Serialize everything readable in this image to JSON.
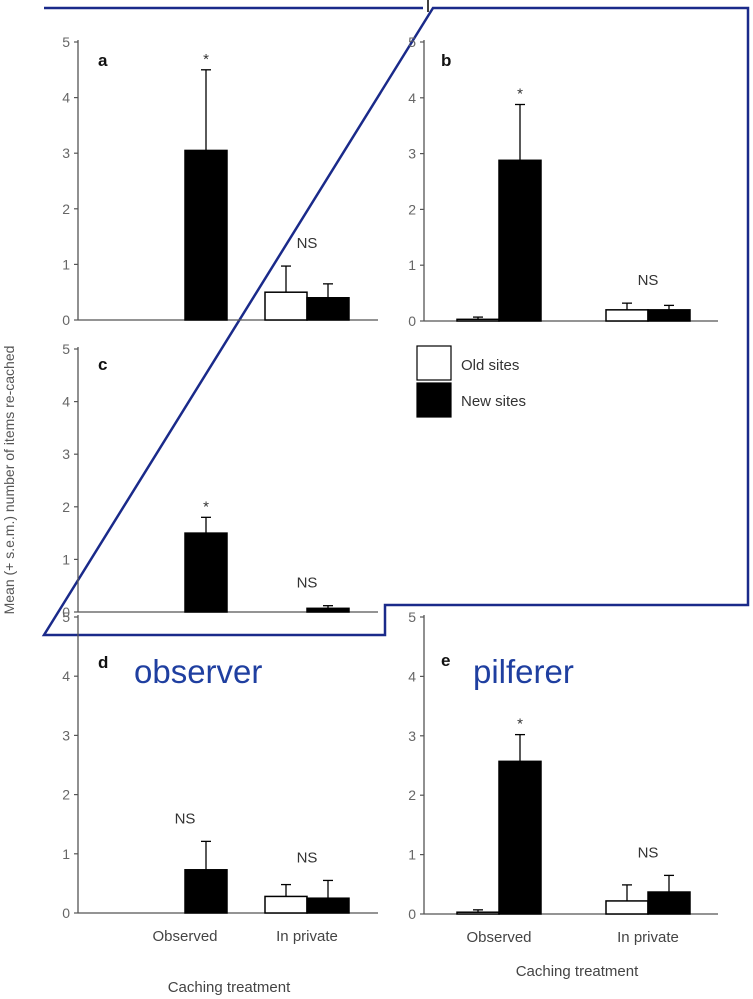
{
  "figure": {
    "ylabel": "Mean (+ s.e.m.) number of items re-cached",
    "xlabel": "Caching treatment",
    "legend": {
      "old_label": "Old sites",
      "new_label": "New sites",
      "old_color": "#ffffff",
      "new_color": "#000000"
    },
    "highlight_color": "#1a2a8a",
    "overlay_color": "#1f3fa0"
  },
  "annotations": {
    "observer": "observer",
    "pilferer": "pilferer"
  },
  "chart_data": [
    {
      "panel": "a",
      "type": "bar",
      "categories": [
        "Observed",
        "In private"
      ],
      "ylim": [
        0,
        5
      ],
      "yticks": [
        "0",
        "1",
        "2",
        "3",
        "4",
        "5"
      ],
      "show_xticklabels": false,
      "series": [
        {
          "name": "Old sites",
          "values": [
            0,
            0.5
          ],
          "errors": [
            0,
            0.47
          ]
        },
        {
          "name": "New sites",
          "values": [
            3.05,
            0.4
          ],
          "errors": [
            1.45,
            0.25
          ]
        }
      ],
      "significance": [
        "*",
        "NS"
      ]
    },
    {
      "panel": "b",
      "type": "bar",
      "categories": [
        "Observed",
        "In private"
      ],
      "ylim": [
        0,
        5
      ],
      "yticks": [
        "0",
        "1",
        "2",
        "3",
        "4",
        "5"
      ],
      "show_xticklabels": false,
      "series": [
        {
          "name": "Old sites",
          "values": [
            0.03,
            0.2
          ],
          "errors": [
            0.04,
            0.12
          ]
        },
        {
          "name": "New sites",
          "values": [
            2.88,
            0.2
          ],
          "errors": [
            1.0,
            0.08
          ]
        }
      ],
      "significance": [
        "*",
        "NS"
      ]
    },
    {
      "panel": "c",
      "type": "bar",
      "categories": [
        "Observed",
        "In private"
      ],
      "ylim": [
        0,
        5
      ],
      "yticks": [
        "0",
        "1",
        "2",
        "3",
        "4",
        "5"
      ],
      "show_xticklabels": false,
      "series": [
        {
          "name": "Old sites",
          "values": [
            0,
            0
          ],
          "errors": [
            0,
            0
          ]
        },
        {
          "name": "New sites",
          "values": [
            1.5,
            0.07
          ],
          "errors": [
            0.3,
            0.05
          ]
        }
      ],
      "significance": [
        "*",
        "NS"
      ]
    },
    {
      "panel": "d",
      "type": "bar",
      "categories": [
        "Observed",
        "In private"
      ],
      "ylim": [
        0,
        5
      ],
      "yticks": [
        "0",
        "1",
        "2",
        "3",
        "4",
        "5"
      ],
      "show_xticklabels": true,
      "series": [
        {
          "name": "Old sites",
          "values": [
            0,
            0.28
          ],
          "errors": [
            0,
            0.2
          ]
        },
        {
          "name": "New sites",
          "values": [
            0.73,
            0.25
          ],
          "errors": [
            0.48,
            0.3
          ]
        }
      ],
      "significance": [
        "NS",
        "NS"
      ]
    },
    {
      "panel": "e",
      "type": "bar",
      "categories": [
        "Observed",
        "In private"
      ],
      "ylim": [
        0,
        5
      ],
      "yticks": [
        "0",
        "1",
        "2",
        "3",
        "4",
        "5"
      ],
      "show_xticklabels": true,
      "series": [
        {
          "name": "Old sites",
          "values": [
            0.03,
            0.22
          ],
          "errors": [
            0.04,
            0.27
          ]
        },
        {
          "name": "New sites",
          "values": [
            2.57,
            0.37
          ],
          "errors": [
            0.45,
            0.28
          ]
        }
      ],
      "significance": [
        "*",
        "NS"
      ]
    }
  ]
}
